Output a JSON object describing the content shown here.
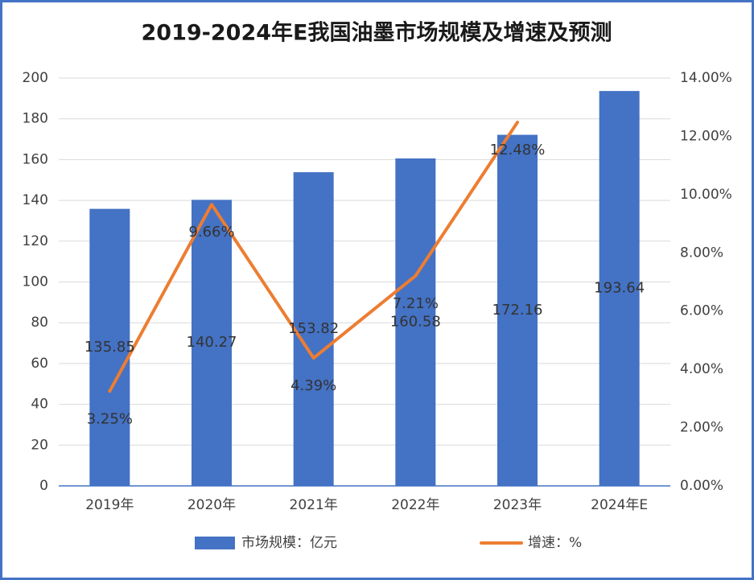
{
  "chart_data": {
    "type": "bar",
    "title": "2019-2024年E我国油墨市场规模及增速及预测",
    "categories": [
      "2019年",
      "2020年",
      "2021年",
      "2022年",
      "2023年",
      "2024年E"
    ],
    "series": [
      {
        "name": "市场规模：亿元",
        "type": "bar",
        "color": "#4472c4",
        "values": [
          135.85,
          140.27,
          153.82,
          160.58,
          172.16,
          193.64
        ]
      },
      {
        "name": "增速：%",
        "type": "line",
        "axis": "y2",
        "color": "#ed7d31",
        "values": [
          3.25,
          9.66,
          4.39,
          7.21,
          12.48,
          null
        ],
        "value_labels": [
          "3.25%",
          "9.66%",
          "4.39%",
          "7.21%",
          "12.48%",
          null
        ]
      }
    ],
    "ylim": [
      0,
      200
    ],
    "yticks": [
      0,
      20,
      40,
      60,
      80,
      100,
      120,
      140,
      160,
      180,
      200
    ],
    "y2lim": [
      0,
      14
    ],
    "y2ticks": [
      {
        "value": 0,
        "label": "0.00%"
      },
      {
        "value": 2,
        "label": "2.00%"
      },
      {
        "value": 4,
        "label": "4.00%"
      },
      {
        "value": 6,
        "label": "6.00%"
      },
      {
        "value": 8,
        "label": "8.00%"
      },
      {
        "value": 10,
        "label": "10.00%"
      },
      {
        "value": 12,
        "label": "12.00%"
      },
      {
        "value": 14,
        "label": "14.00%"
      }
    ],
    "grid": true,
    "legend": "bottom"
  }
}
